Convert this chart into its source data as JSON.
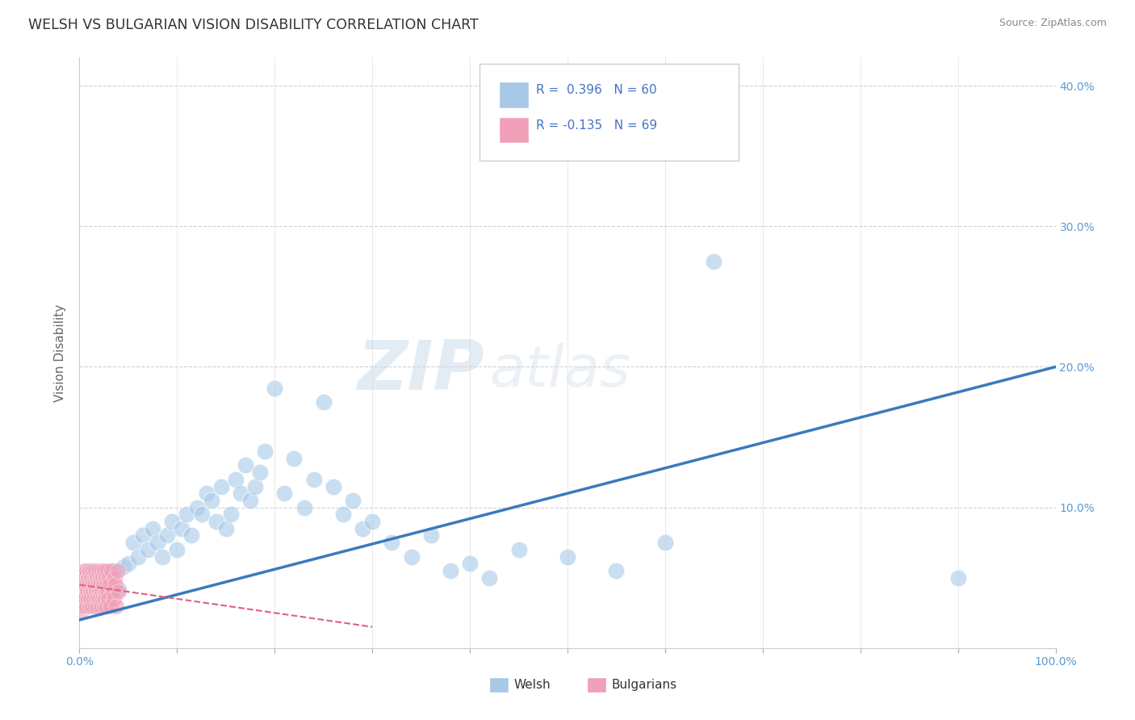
{
  "title": "WELSH VS BULGARIAN VISION DISABILITY CORRELATION CHART",
  "source": "Source: ZipAtlas.com",
  "ylabel": "Vision Disability",
  "xlim": [
    0.0,
    100.0
  ],
  "ylim": [
    0.0,
    42.0
  ],
  "grid_color": "#cccccc",
  "background_color": "#ffffff",
  "welsh_color": "#a8c8e8",
  "bulgarian_color": "#f0a0b8",
  "welsh_line_color": "#3a7abf",
  "bulgarian_line_color": "#e06080",
  "legend_R_welsh": "R =  0.396",
  "legend_N_welsh": "N = 60",
  "legend_R_bulgarian": "R = -0.135",
  "legend_N_bulgarian": "N = 69",
  "watermark_zip": "ZIP",
  "watermark_atlas": "atlas",
  "title_color": "#333333",
  "axis_label_color": "#5b9bd5",
  "legend_text_color": "#4472c4",
  "welsh_line_x": [
    0,
    100
  ],
  "welsh_line_y": [
    2.0,
    20.0
  ],
  "bulgarian_line_x": [
    0,
    30
  ],
  "bulgarian_line_y": [
    4.5,
    1.5
  ],
  "welsh_scatter": [
    [
      1.0,
      3.5
    ],
    [
      1.5,
      4.0
    ],
    [
      2.0,
      4.5
    ],
    [
      2.5,
      5.0
    ],
    [
      3.0,
      3.8
    ],
    [
      3.5,
      5.5
    ],
    [
      4.0,
      4.2
    ],
    [
      4.5,
      5.8
    ],
    [
      5.0,
      6.0
    ],
    [
      5.5,
      7.5
    ],
    [
      6.0,
      6.5
    ],
    [
      6.5,
      8.0
    ],
    [
      7.0,
      7.0
    ],
    [
      7.5,
      8.5
    ],
    [
      8.0,
      7.5
    ],
    [
      8.5,
      6.5
    ],
    [
      9.0,
      8.0
    ],
    [
      9.5,
      9.0
    ],
    [
      10.0,
      7.0
    ],
    [
      10.5,
      8.5
    ],
    [
      11.0,
      9.5
    ],
    [
      11.5,
      8.0
    ],
    [
      12.0,
      10.0
    ],
    [
      12.5,
      9.5
    ],
    [
      13.0,
      11.0
    ],
    [
      13.5,
      10.5
    ],
    [
      14.0,
      9.0
    ],
    [
      14.5,
      11.5
    ],
    [
      15.0,
      8.5
    ],
    [
      15.5,
      9.5
    ],
    [
      16.0,
      12.0
    ],
    [
      16.5,
      11.0
    ],
    [
      17.0,
      13.0
    ],
    [
      17.5,
      10.5
    ],
    [
      18.0,
      11.5
    ],
    [
      18.5,
      12.5
    ],
    [
      19.0,
      14.0
    ],
    [
      20.0,
      18.5
    ],
    [
      21.0,
      11.0
    ],
    [
      22.0,
      13.5
    ],
    [
      23.0,
      10.0
    ],
    [
      24.0,
      12.0
    ],
    [
      25.0,
      17.5
    ],
    [
      26.0,
      11.5
    ],
    [
      27.0,
      9.5
    ],
    [
      28.0,
      10.5
    ],
    [
      29.0,
      8.5
    ],
    [
      30.0,
      9.0
    ],
    [
      32.0,
      7.5
    ],
    [
      34.0,
      6.5
    ],
    [
      36.0,
      8.0
    ],
    [
      38.0,
      5.5
    ],
    [
      40.0,
      6.0
    ],
    [
      42.0,
      5.0
    ],
    [
      45.0,
      7.0
    ],
    [
      50.0,
      6.5
    ],
    [
      55.0,
      5.5
    ],
    [
      60.0,
      7.5
    ],
    [
      65.0,
      27.5
    ],
    [
      90.0,
      5.0
    ]
  ],
  "bulgarian_scatter": [
    [
      0.1,
      3.0
    ],
    [
      0.15,
      2.5
    ],
    [
      0.2,
      4.0
    ],
    [
      0.25,
      3.5
    ],
    [
      0.3,
      5.0
    ],
    [
      0.35,
      4.5
    ],
    [
      0.4,
      3.0
    ],
    [
      0.45,
      5.5
    ],
    [
      0.5,
      4.0
    ],
    [
      0.55,
      3.5
    ],
    [
      0.6,
      5.0
    ],
    [
      0.65,
      4.5
    ],
    [
      0.7,
      3.0
    ],
    [
      0.75,
      5.5
    ],
    [
      0.8,
      4.0
    ],
    [
      0.85,
      3.5
    ],
    [
      0.9,
      5.0
    ],
    [
      0.95,
      4.5
    ],
    [
      1.0,
      3.0
    ],
    [
      1.05,
      5.5
    ],
    [
      1.1,
      4.0
    ],
    [
      1.15,
      3.5
    ],
    [
      1.2,
      5.0
    ],
    [
      1.25,
      4.5
    ],
    [
      1.3,
      3.0
    ],
    [
      1.35,
      5.5
    ],
    [
      1.4,
      4.0
    ],
    [
      1.45,
      3.5
    ],
    [
      1.5,
      5.0
    ],
    [
      1.55,
      4.5
    ],
    [
      1.6,
      3.0
    ],
    [
      1.65,
      5.5
    ],
    [
      1.7,
      4.0
    ],
    [
      1.75,
      3.5
    ],
    [
      1.8,
      5.0
    ],
    [
      1.85,
      4.5
    ],
    [
      1.9,
      3.0
    ],
    [
      1.95,
      5.5
    ],
    [
      2.0,
      4.0
    ],
    [
      2.05,
      3.5
    ],
    [
      2.1,
      5.0
    ],
    [
      2.15,
      4.5
    ],
    [
      2.2,
      3.0
    ],
    [
      2.25,
      5.5
    ],
    [
      2.3,
      4.0
    ],
    [
      2.35,
      3.5
    ],
    [
      2.4,
      5.0
    ],
    [
      2.45,
      4.5
    ],
    [
      2.5,
      3.0
    ],
    [
      2.55,
      5.5
    ],
    [
      2.6,
      4.0
    ],
    [
      2.65,
      3.5
    ],
    [
      2.7,
      5.0
    ],
    [
      2.75,
      4.5
    ],
    [
      2.8,
      3.0
    ],
    [
      2.85,
      5.5
    ],
    [
      2.9,
      4.0
    ],
    [
      2.95,
      3.5
    ],
    [
      3.0,
      5.0
    ],
    [
      3.1,
      4.5
    ],
    [
      3.2,
      3.0
    ],
    [
      3.3,
      5.5
    ],
    [
      3.4,
      4.0
    ],
    [
      3.5,
      3.5
    ],
    [
      3.6,
      5.0
    ],
    [
      3.7,
      4.5
    ],
    [
      3.8,
      3.0
    ],
    [
      3.9,
      5.5
    ],
    [
      4.0,
      4.0
    ]
  ]
}
